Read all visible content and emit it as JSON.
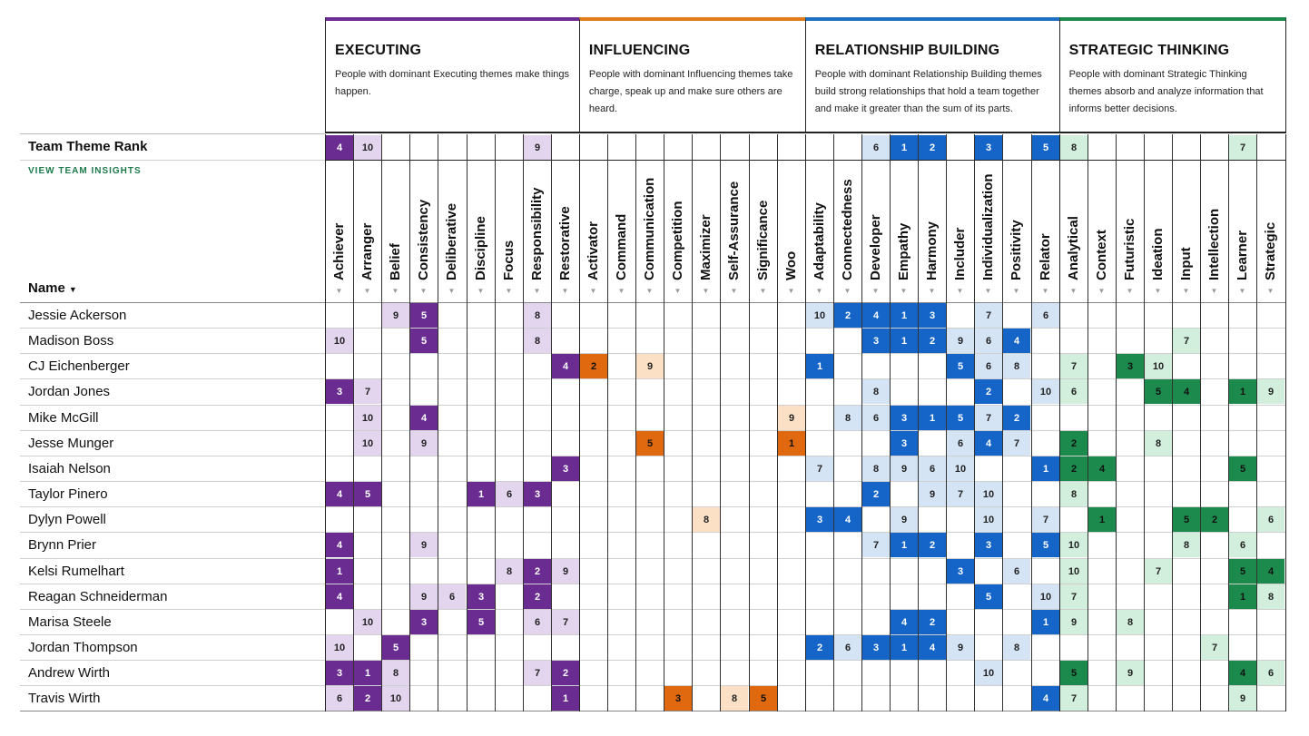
{
  "domains": [
    {
      "title": "EXECUTING",
      "description": "People with dominant Executing themes make things happen.",
      "color": "#6a2c91"
    },
    {
      "title": "INFLUENCING",
      "description": "People with dominant Influencing themes take charge, speak up and make sure others are heard.",
      "color": "#e07b1a"
    },
    {
      "title": "RELATIONSHIP BUILDING",
      "description": "People with dominant Relationship Building themes build strong relationships that hold a team together and make it greater than the sum of its parts.",
      "color": "#1f6fc5"
    },
    {
      "title": "STRATEGIC THINKING",
      "description": "People with dominant Strategic Thinking themes absorb and analyze information that informs better decisions.",
      "color": "#1b8a4c"
    }
  ],
  "domain_palettes": [
    {
      "strong": "#6a2c91",
      "light": "#e4d5ee",
      "strong_text": "#ffffff",
      "light_text": "#222222"
    },
    {
      "strong": "#e0680f",
      "light": "#fbe0c6",
      "strong_text": "#111111",
      "light_text": "#222222"
    },
    {
      "strong": "#1565c8",
      "light": "#d5e4f5",
      "strong_text": "#ffffff",
      "light_text": "#222222"
    },
    {
      "strong": "#1b8a4c",
      "light": "#d2eedc",
      "strong_text": "#111111",
      "light_text": "#222222"
    }
  ],
  "themes": [
    "Achiever",
    "Arranger",
    "Belief",
    "Consistency",
    "Deliberative",
    "Discipline",
    "Focus",
    "Responsibility",
    "Restorative",
    "Activator",
    "Command",
    "Communication",
    "Competition",
    "Maximizer",
    "Self-Assurance",
    "Significance",
    "Woo",
    "Adaptability",
    "Connectedness",
    "Developer",
    "Empathy",
    "Harmony",
    "Includer",
    "Individualization",
    "Positivity",
    "Relator",
    "Analytical",
    "Context",
    "Futuristic",
    "Ideation",
    "Input",
    "Intellection",
    "Learner",
    "Strategic"
  ],
  "team_rank_label": "Team Theme Rank",
  "view_insights_label": "VIEW TEAM INSIGHTS",
  "name_header": "Name",
  "name_sort_icon": "▼",
  "sort_icon": "▼",
  "team_rank": {
    "0": 4,
    "1": 10,
    "7": 9,
    "19": 6,
    "20": 1,
    "21": 2,
    "23": 3,
    "25": 5,
    "26": 8,
    "32": 7
  },
  "members": [
    {
      "name": "Jessie Ackerson",
      "ranks": {
        "2": 9,
        "3": 5,
        "7": 8,
        "17": 10,
        "18": 2,
        "19": 4,
        "20": 1,
        "21": 3,
        "23": 7,
        "25": 6
      }
    },
    {
      "name": "Madison Boss",
      "ranks": {
        "0": 10,
        "3": 5,
        "7": 8,
        "19": 3,
        "20": 1,
        "21": 2,
        "22": 9,
        "23": 6,
        "24": 4,
        "30": 7
      }
    },
    {
      "name": "CJ Eichenberger",
      "ranks": {
        "8": 4,
        "9": 2,
        "11": 9,
        "17": 1,
        "22": 5,
        "23": 6,
        "24": 8,
        "26": 7,
        "28": 3,
        "29": 10
      }
    },
    {
      "name": "Jordan Jones",
      "ranks": {
        "0": 3,
        "1": 7,
        "19": 8,
        "23": 2,
        "25": 10,
        "26": 6,
        "29": 5,
        "30": 4,
        "32": 1,
        "33": 9
      }
    },
    {
      "name": "Mike McGill",
      "ranks": {
        "1": 10,
        "3": 4,
        "16": 9,
        "18": 8,
        "19": 6,
        "20": 3,
        "21": 1,
        "22": 5,
        "23": 7,
        "24": 2
      }
    },
    {
      "name": "Jesse Munger",
      "ranks": {
        "1": 10,
        "3": 9,
        "11": 5,
        "16": 1,
        "20": 3,
        "22": 6,
        "23": 4,
        "24": 7,
        "26": 2,
        "29": 8
      }
    },
    {
      "name": "Isaiah Nelson",
      "ranks": {
        "8": 3,
        "17": 7,
        "19": 8,
        "20": 9,
        "21": 6,
        "22": 10,
        "25": 1,
        "26": 2,
        "27": 4,
        "32": 5
      }
    },
    {
      "name": "Taylor Pinero",
      "ranks": {
        "0": 4,
        "1": 5,
        "5": 1,
        "6": 6,
        "7": 3,
        "19": 2,
        "21": 9,
        "22": 7,
        "23": 10,
        "26": 8
      }
    },
    {
      "name": "Dylyn Powell",
      "ranks": {
        "13": 8,
        "17": 3,
        "18": 4,
        "20": 9,
        "23": 10,
        "25": 7,
        "27": 1,
        "30": 5,
        "31": 2,
        "33": 6
      }
    },
    {
      "name": "Brynn Prier",
      "ranks": {
        "0": 4,
        "3": 9,
        "19": 7,
        "20": 1,
        "21": 2,
        "23": 3,
        "25": 5,
        "26": 10,
        "30": 8,
        "32": 6
      }
    },
    {
      "name": "Kelsi Rumelhart",
      "ranks": {
        "0": 1,
        "6": 8,
        "7": 2,
        "8": 9,
        "22": 3,
        "24": 6,
        "26": 10,
        "29": 7,
        "32": 5,
        "33": 4
      }
    },
    {
      "name": "Reagan Schneiderman",
      "ranks": {
        "0": 4,
        "3": 9,
        "4": 6,
        "5": 3,
        "7": 2,
        "23": 5,
        "25": 10,
        "26": 7,
        "32": 1,
        "33": 8
      }
    },
    {
      "name": "Marisa Steele",
      "ranks": {
        "1": 10,
        "3": 3,
        "5": 5,
        "7": 6,
        "8": 7,
        "20": 4,
        "21": 2,
        "25": 1,
        "26": 9,
        "28": 8
      }
    },
    {
      "name": "Jordan Thompson",
      "ranks": {
        "0": 10,
        "2": 5,
        "17": 2,
        "18": 6,
        "19": 3,
        "20": 1,
        "21": 4,
        "22": 9,
        "24": 8,
        "31": 7
      }
    },
    {
      "name": "Andrew Wirth",
      "ranks": {
        "0": 3,
        "1": 1,
        "2": 8,
        "7": 7,
        "8": 2,
        "23": 10,
        "26": 5,
        "28": 9,
        "32": 4,
        "33": 6
      }
    },
    {
      "name": "Travis Wirth",
      "ranks": {
        "0": 6,
        "1": 2,
        "2": 10,
        "8": 1,
        "12": 3,
        "14": 8,
        "15": 5,
        "25": 4,
        "26": 7,
        "32": 9
      }
    }
  ]
}
